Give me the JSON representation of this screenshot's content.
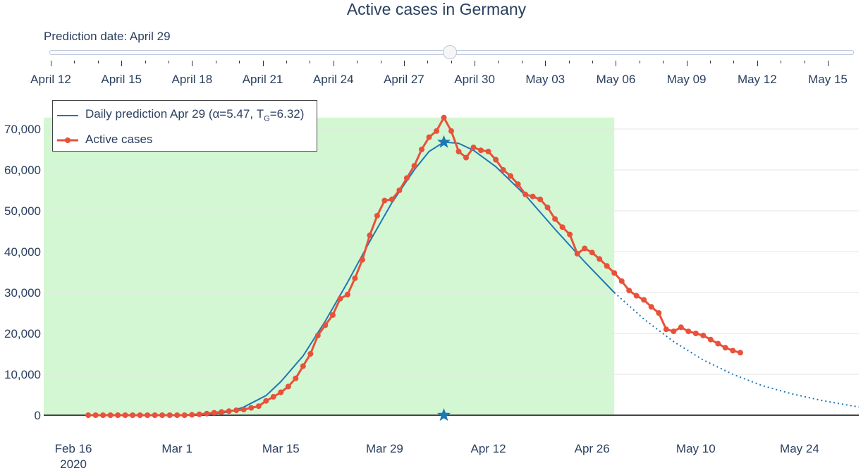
{
  "chart_data": {
    "type": "line",
    "title": "Active cases in Germany",
    "slider": {
      "label": "Prediction date: April 29",
      "steps": [
        "April 12",
        "April 15",
        "April 18",
        "April 21",
        "April 24",
        "April 27",
        "April 30",
        "May 03",
        "May 06",
        "May 09",
        "May 12",
        "May 15"
      ],
      "selected": "April 29"
    },
    "x_ticks": [
      "Feb 16",
      "Mar 1",
      "Mar 15",
      "Mar 29",
      "Apr 12",
      "Apr 26",
      "May 10",
      "May 24"
    ],
    "x_tick_year": "2020",
    "y_ticks": [
      "0",
      "10,000",
      "20,000",
      "30,000",
      "40,000",
      "50,000",
      "60,000",
      "70,000"
    ],
    "ylim": [
      0,
      72000
    ],
    "xlim": [
      "2020-02-12",
      "2020-06-01"
    ],
    "highlight_range": [
      "2020-02-12",
      "2020-04-29"
    ],
    "peak_marker": {
      "x": "2020-04-06",
      "y": 66800
    },
    "axis_marker": {
      "x": "2020-04-06",
      "y": 0
    },
    "legend": {
      "prediction": "Daily prediction Apr 29 (α=5.47, T",
      "prediction_sub": "G",
      "prediction_tail": "=6.32)",
      "actual": "Active cases"
    },
    "colors": {
      "prediction": "#1f77b4",
      "actual": "#e8513a",
      "highlight": "#d3f7d3"
    },
    "series": [
      {
        "name": "Active cases",
        "x_start": "2020-02-18",
        "values": [
          0,
          0,
          0,
          0,
          0,
          0,
          0,
          0,
          0,
          0,
          0,
          0,
          0,
          0,
          100,
          200,
          400,
          600,
          800,
          1000,
          1200,
          1400,
          1800,
          2200,
          3500,
          4500,
          5600,
          7000,
          9000,
          12000,
          15000,
          19500,
          22000,
          24500,
          28500,
          29500,
          33500,
          38000,
          44000,
          48800,
          52500,
          52800,
          55000,
          58000,
          61000,
          65000,
          68000,
          69500,
          72800,
          69500,
          64500,
          63000,
          65500,
          64800,
          64500,
          62500,
          60000,
          58500,
          56500,
          54000,
          53500,
          52800,
          50800,
          48000,
          46000,
          44200,
          39500,
          40800,
          39800,
          38200,
          36500,
          34800,
          32800,
          30500,
          29200,
          28200,
          26500,
          25000,
          21000,
          20500,
          21500,
          20500,
          20000,
          19500,
          18500,
          17500,
          16500,
          15800,
          15300
        ]
      },
      {
        "name": "Daily prediction Apr 29",
        "fitted_through": "2020-04-29",
        "points": [
          [
            "2020-02-29",
            0
          ],
          [
            "2020-03-05",
            150
          ],
          [
            "2020-03-08",
            800
          ],
          [
            "2020-03-10",
            2000
          ],
          [
            "2020-03-13",
            4800
          ],
          [
            "2020-03-15",
            8200
          ],
          [
            "2020-03-18",
            14500
          ],
          [
            "2020-03-21",
            23000
          ],
          [
            "2020-03-24",
            32500
          ],
          [
            "2020-03-27",
            42500
          ],
          [
            "2020-03-30",
            52000
          ],
          [
            "2020-04-02",
            60000
          ],
          [
            "2020-04-04",
            64500
          ],
          [
            "2020-04-06",
            66800
          ],
          [
            "2020-04-08",
            66500
          ],
          [
            "2020-04-10",
            64800
          ],
          [
            "2020-04-13",
            60800
          ],
          [
            "2020-04-17",
            53800
          ],
          [
            "2020-04-21",
            45500
          ],
          [
            "2020-04-25",
            37500
          ],
          [
            "2020-04-29",
            30000
          ],
          [
            "2020-05-03",
            23500
          ],
          [
            "2020-05-07",
            18000
          ],
          [
            "2020-05-11",
            13500
          ],
          [
            "2020-05-15",
            10000
          ],
          [
            "2020-05-19",
            7200
          ],
          [
            "2020-05-23",
            5200
          ],
          [
            "2020-05-27",
            3600
          ],
          [
            "2020-06-01",
            2000
          ]
        ]
      }
    ]
  }
}
